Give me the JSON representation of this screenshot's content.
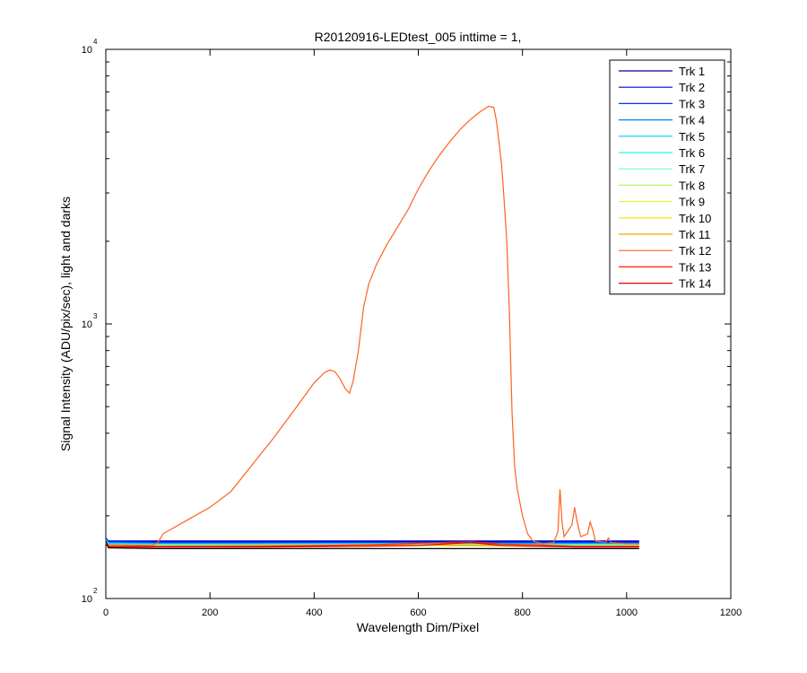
{
  "chart_data": {
    "type": "line",
    "title": "R20120916-LEDtest_005 inttime = 1,",
    "xlabel": "Wavelength Dim/Pixel",
    "ylabel": "Signal Intensity (ADU/pix/sec), light and darks",
    "xlim": [
      0,
      1200
    ],
    "ylim": [
      100,
      10000
    ],
    "yscale": "log",
    "grid": false,
    "legend_position": "top-right",
    "x_ticks": [
      "0",
      "200",
      "400",
      "600",
      "800",
      "1000",
      "1200"
    ],
    "y_ticks": [
      {
        "base": "10",
        "exp": "2",
        "value": 100
      },
      {
        "base": "10",
        "exp": "3",
        "value": 1000
      },
      {
        "base": "10",
        "exp": "4",
        "value": 10000
      }
    ],
    "series": [
      {
        "name": "Trk 1",
        "color": "#00008f",
        "points": [
          [
            0,
            165
          ],
          [
            5,
            160
          ],
          [
            100,
            161
          ],
          [
            300,
            161
          ],
          [
            600,
            161
          ],
          [
            900,
            161
          ],
          [
            1024,
            161
          ]
        ]
      },
      {
        "name": "Trk 2",
        "color": "#0000df",
        "points": [
          [
            0,
            166
          ],
          [
            5,
            162
          ],
          [
            100,
            162
          ],
          [
            300,
            162
          ],
          [
            600,
            162
          ],
          [
            900,
            162
          ],
          [
            1024,
            162
          ]
        ]
      },
      {
        "name": "Trk 3",
        "color": "#0030ff",
        "points": [
          [
            0,
            165
          ],
          [
            5,
            161
          ],
          [
            100,
            160
          ],
          [
            300,
            160
          ],
          [
            600,
            160
          ],
          [
            900,
            160
          ],
          [
            1024,
            160
          ]
        ]
      },
      {
        "name": "Trk 4",
        "color": "#0080ff",
        "points": [
          [
            0,
            164
          ],
          [
            5,
            160
          ],
          [
            100,
            159
          ],
          [
            300,
            159
          ],
          [
            600,
            159
          ],
          [
            900,
            159
          ],
          [
            1024,
            159
          ]
        ]
      },
      {
        "name": "Trk 5",
        "color": "#00cfff",
        "points": [
          [
            0,
            163
          ],
          [
            5,
            159
          ],
          [
            100,
            158
          ],
          [
            300,
            158
          ],
          [
            600,
            159
          ],
          [
            900,
            158
          ],
          [
            1024,
            158
          ]
        ]
      },
      {
        "name": "Trk 6",
        "color": "#20ffdf",
        "points": [
          [
            0,
            162
          ],
          [
            5,
            158
          ],
          [
            100,
            157
          ],
          [
            300,
            157
          ],
          [
            600,
            158
          ],
          [
            900,
            157
          ],
          [
            1024,
            157
          ]
        ]
      },
      {
        "name": "Trk 7",
        "color": "#70ffbf",
        "points": [
          [
            0,
            162
          ],
          [
            5,
            157
          ],
          [
            100,
            157
          ],
          [
            300,
            157
          ],
          [
            600,
            158
          ],
          [
            900,
            157
          ],
          [
            1024,
            157
          ]
        ]
      },
      {
        "name": "Trk 8",
        "color": "#9fff60",
        "points": [
          [
            0,
            161
          ],
          [
            5,
            156
          ],
          [
            100,
            156
          ],
          [
            300,
            156
          ],
          [
            600,
            157
          ],
          [
            900,
            156
          ],
          [
            1024,
            156
          ]
        ]
      },
      {
        "name": "Trk 9",
        "color": "#dfff20",
        "points": [
          [
            0,
            161
          ],
          [
            5,
            156
          ],
          [
            100,
            155
          ],
          [
            300,
            156
          ],
          [
            600,
            156
          ],
          [
            900,
            155
          ],
          [
            1024,
            155
          ]
        ]
      },
      {
        "name": "Trk 10",
        "color": "#ffdf00",
        "points": [
          [
            0,
            160
          ],
          [
            5,
            155
          ],
          [
            100,
            155
          ],
          [
            300,
            155
          ],
          [
            600,
            156
          ],
          [
            900,
            155
          ],
          [
            1024,
            155
          ]
        ]
      },
      {
        "name": "Trk 11",
        "color": "#ffa000",
        "points": [
          [
            0,
            160
          ],
          [
            5,
            155
          ],
          [
            100,
            155
          ],
          [
            300,
            156
          ],
          [
            600,
            157
          ],
          [
            900,
            155
          ],
          [
            1024,
            155
          ]
        ]
      },
      {
        "name": "Trk 12",
        "color": "#ff6020",
        "points": [
          [
            0,
            160
          ],
          [
            5,
            157
          ],
          [
            90,
            156
          ],
          [
            100,
            160
          ],
          [
            110,
            172
          ],
          [
            150,
            190
          ],
          [
            200,
            215
          ],
          [
            240,
            245
          ],
          [
            280,
            305
          ],
          [
            320,
            380
          ],
          [
            360,
            480
          ],
          [
            400,
            610
          ],
          [
            420,
            665
          ],
          [
            430,
            680
          ],
          [
            440,
            670
          ],
          [
            450,
            630
          ],
          [
            460,
            580
          ],
          [
            468,
            560
          ],
          [
            475,
            620
          ],
          [
            485,
            800
          ],
          [
            495,
            1150
          ],
          [
            505,
            1400
          ],
          [
            520,
            1650
          ],
          [
            540,
            1950
          ],
          [
            560,
            2250
          ],
          [
            580,
            2600
          ],
          [
            600,
            3100
          ],
          [
            620,
            3600
          ],
          [
            640,
            4100
          ],
          [
            660,
            4600
          ],
          [
            680,
            5100
          ],
          [
            700,
            5550
          ],
          [
            720,
            5950
          ],
          [
            735,
            6200
          ],
          [
            745,
            6150
          ],
          [
            750,
            5500
          ],
          [
            755,
            4600
          ],
          [
            760,
            3800
          ],
          [
            765,
            2800
          ],
          [
            770,
            2000
          ],
          [
            775,
            1100
          ],
          [
            780,
            480
          ],
          [
            785,
            300
          ],
          [
            790,
            250
          ],
          [
            800,
            200
          ],
          [
            810,
            172
          ],
          [
            820,
            162
          ],
          [
            840,
            158
          ],
          [
            860,
            160
          ],
          [
            868,
            175
          ],
          [
            872,
            250
          ],
          [
            876,
            190
          ],
          [
            880,
            168
          ],
          [
            895,
            185
          ],
          [
            900,
            215
          ],
          [
            905,
            190
          ],
          [
            912,
            168
          ],
          [
            925,
            172
          ],
          [
            930,
            190
          ],
          [
            935,
            178
          ],
          [
            940,
            162
          ],
          [
            960,
            160
          ],
          [
            965,
            166
          ],
          [
            970,
            160
          ],
          [
            1000,
            158
          ],
          [
            1024,
            158
          ]
        ]
      },
      {
        "name": "Trk 13",
        "color": "#ff2000",
        "points": [
          [
            0,
            159
          ],
          [
            5,
            155
          ],
          [
            100,
            155
          ],
          [
            300,
            155
          ],
          [
            500,
            157
          ],
          [
            600,
            159
          ],
          [
            700,
            161
          ],
          [
            760,
            158
          ],
          [
            820,
            157
          ],
          [
            900,
            155
          ],
          [
            1024,
            155
          ]
        ]
      },
      {
        "name": "Trk 14",
        "color": "#df0000",
        "points": [
          [
            0,
            158
          ],
          [
            5,
            154
          ],
          [
            100,
            154
          ],
          [
            300,
            154
          ],
          [
            500,
            155
          ],
          [
            600,
            156
          ],
          [
            700,
            160
          ],
          [
            760,
            156
          ],
          [
            820,
            155
          ],
          [
            900,
            154
          ],
          [
            1024,
            154
          ]
        ]
      },
      {
        "points": [
          [
            0,
            162
          ],
          [
            5,
            153
          ],
          [
            100,
            152
          ],
          [
            300,
            152
          ],
          [
            600,
            152
          ],
          [
            900,
            152
          ],
          [
            1024,
            152
          ]
        ],
        "color": "#000000"
      }
    ]
  }
}
